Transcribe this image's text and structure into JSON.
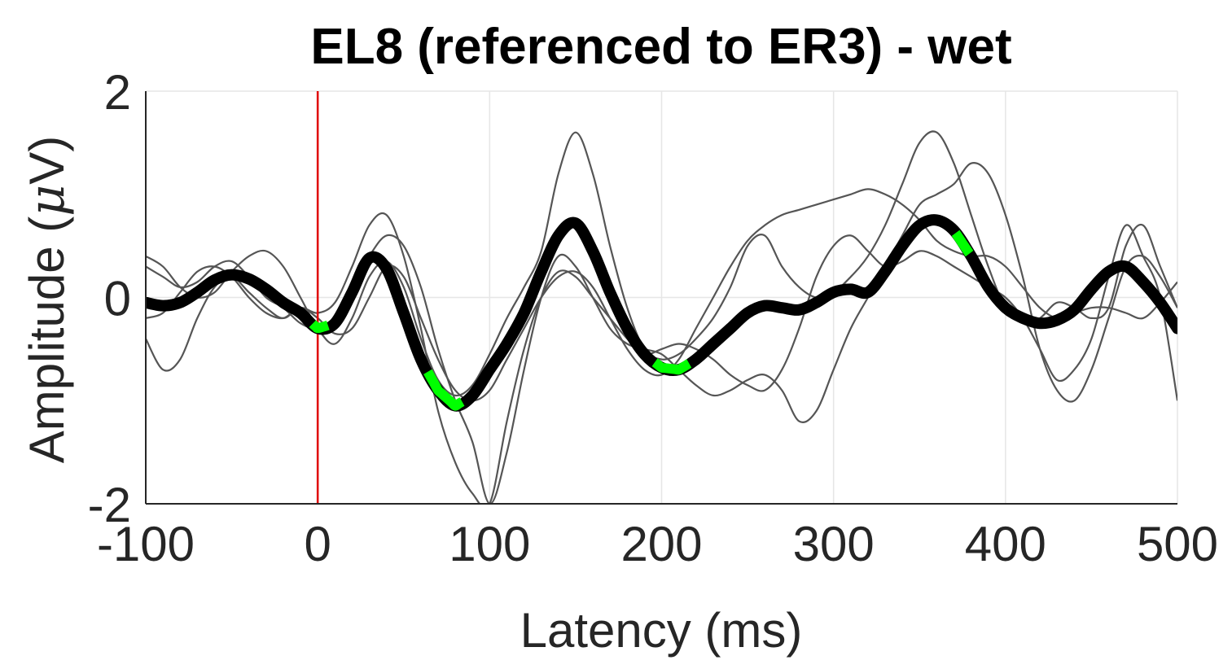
{
  "chart_data": {
    "type": "line",
    "title": "EL8 (referenced to ER3) - wet",
    "xlabel": "Latency (ms)",
    "ylabel_prefix": "Amplitude (",
    "ylabel_mu": "μ",
    "ylabel_suffix": "V)",
    "xlim": [
      -100,
      500
    ],
    "ylim": [
      -2,
      2
    ],
    "xticks": [
      -100,
      0,
      100,
      200,
      300,
      400,
      500
    ],
    "yticks": [
      -2,
      0,
      2
    ],
    "xtick_labels": [
      "-100",
      "0",
      "100",
      "200",
      "300",
      "400",
      "500"
    ],
    "ytick_labels": [
      "-2",
      "0",
      "2"
    ],
    "grid": true,
    "colors": {
      "mean": "#000000",
      "trials": "#555555",
      "highlight": "#00ff00",
      "stimulus": "#e00000",
      "grid": "#e6e6e6",
      "axis": "#262626"
    },
    "stimulus_line_x": 0,
    "mean_series": {
      "x": [
        -100,
        -90,
        -80,
        -70,
        -60,
        -50,
        -40,
        -30,
        -20,
        -10,
        0,
        10,
        20,
        30,
        40,
        50,
        60,
        70,
        80,
        90,
        100,
        110,
        120,
        130,
        140,
        150,
        160,
        170,
        180,
        190,
        200,
        210,
        220,
        230,
        240,
        250,
        260,
        270,
        280,
        290,
        300,
        310,
        320,
        330,
        340,
        350,
        360,
        370,
        380,
        390,
        400,
        410,
        420,
        430,
        440,
        450,
        460,
        470,
        480,
        490,
        500
      ],
      "y": [
        -0.05,
        -0.08,
        -0.05,
        0.05,
        0.17,
        0.22,
        0.18,
        0.08,
        -0.05,
        -0.15,
        -0.3,
        -0.25,
        0.05,
        0.38,
        0.28,
        -0.15,
        -0.6,
        -0.9,
        -1.05,
        -0.95,
        -0.7,
        -0.45,
        -0.15,
        0.25,
        0.6,
        0.72,
        0.45,
        0.05,
        -0.3,
        -0.55,
        -0.68,
        -0.7,
        -0.6,
        -0.45,
        -0.3,
        -0.15,
        -0.08,
        -0.1,
        -0.12,
        -0.05,
        0.05,
        0.08,
        0.05,
        0.25,
        0.5,
        0.7,
        0.75,
        0.65,
        0.4,
        0.1,
        -0.1,
        -0.2,
        -0.25,
        -0.22,
        -0.12,
        0.08,
        0.25,
        0.3,
        0.15,
        -0.05,
        -0.3
      ]
    },
    "highlight_ranges": [
      [
        -3,
        6
      ],
      [
        64,
        84
      ],
      [
        196,
        216
      ],
      [
        371,
        379
      ]
    ],
    "trial_series": [
      {
        "x": [
          -100,
          -90,
          -80,
          -70,
          -60,
          -50,
          -40,
          -30,
          -20,
          -10,
          0,
          10,
          20,
          30,
          40,
          50,
          60,
          70,
          80,
          90,
          100,
          110,
          120,
          130,
          140,
          150,
          160,
          170,
          180,
          190,
          200,
          210,
          220,
          230,
          240,
          250,
          260,
          270,
          280,
          290,
          300,
          310,
          320,
          330,
          340,
          350,
          360,
          370,
          380,
          390,
          400,
          410,
          420,
          430,
          440,
          450,
          460,
          470,
          480,
          490,
          500
        ],
        "y": [
          0.4,
          0.3,
          0.1,
          0.0,
          0.05,
          0.25,
          0.4,
          0.45,
          0.3,
          0.0,
          -0.3,
          -0.45,
          -0.2,
          0.2,
          0.35,
          0.1,
          -0.4,
          -0.8,
          -0.95,
          -0.85,
          -0.55,
          -0.2,
          0.1,
          0.45,
          1.2,
          1.6,
          1.2,
          0.5,
          -0.1,
          -0.5,
          -0.6,
          -0.55,
          -0.4,
          -0.2,
          0.1,
          0.5,
          0.6,
          0.3,
          0.1,
          0.0,
          0.05,
          0.2,
          0.4,
          0.7,
          1.1,
          1.5,
          1.6,
          1.3,
          0.8,
          0.3,
          -0.1,
          -0.25,
          -0.2,
          -0.05,
          -0.1,
          -0.2,
          -0.1,
          0.5,
          0.7,
          0.3,
          -0.1
        ]
      },
      {
        "x": [
          -100,
          -90,
          -80,
          -70,
          -60,
          -50,
          -40,
          -30,
          -20,
          -10,
          0,
          10,
          20,
          30,
          40,
          50,
          60,
          70,
          80,
          90,
          100,
          110,
          120,
          130,
          140,
          150,
          160,
          170,
          180,
          190,
          200,
          210,
          220,
          230,
          240,
          250,
          260,
          270,
          280,
          290,
          300,
          310,
          320,
          330,
          340,
          350,
          360,
          370,
          380,
          390,
          400,
          410,
          420,
          430,
          440,
          450,
          460,
          470,
          480,
          490,
          500
        ],
        "y": [
          -0.4,
          -0.7,
          -0.6,
          -0.2,
          0.1,
          0.2,
          0.05,
          -0.1,
          -0.2,
          -0.1,
          -0.15,
          -0.05,
          0.3,
          0.7,
          0.8,
          0.4,
          -0.3,
          -1.1,
          -1.6,
          -1.9,
          -2.0,
          -1.2,
          -0.5,
          0.0,
          0.25,
          0.2,
          0.0,
          -0.2,
          -0.4,
          -0.55,
          -0.5,
          -0.45,
          -0.5,
          -0.6,
          -0.75,
          -0.85,
          -0.9,
          -0.7,
          -0.3,
          0.2,
          0.5,
          0.6,
          0.45,
          0.3,
          0.35,
          0.45,
          0.4,
          0.3,
          0.2,
          0.1,
          0.0,
          -0.2,
          -0.5,
          -0.8,
          -0.7,
          -0.4,
          0.2,
          0.7,
          0.4,
          0.0,
          -1.0
        ]
      },
      {
        "x": [
          -100,
          -90,
          -80,
          -70,
          -60,
          -50,
          -40,
          -30,
          -20,
          -10,
          0,
          10,
          20,
          30,
          40,
          50,
          60,
          70,
          80,
          90,
          100,
          110,
          120,
          130,
          140,
          150,
          160,
          170,
          180,
          190,
          200,
          210,
          220,
          230,
          240,
          250,
          260,
          270,
          280,
          290,
          300,
          310,
          320,
          330,
          340,
          350,
          360,
          370,
          380,
          390,
          400,
          410,
          420,
          430,
          440,
          450,
          460,
          470,
          480,
          490,
          500
        ],
        "y": [
          0.3,
          0.2,
          0.1,
          0.15,
          0.3,
          0.35,
          0.2,
          0.0,
          -0.1,
          -0.25,
          -0.3,
          -0.2,
          0.1,
          0.4,
          0.6,
          0.5,
          0.1,
          -0.5,
          -1.0,
          -1.4,
          -2.0,
          -1.5,
          -0.7,
          0.0,
          0.4,
          0.3,
          0.0,
          -0.3,
          -0.45,
          -0.5,
          -0.55,
          -0.7,
          -0.85,
          -0.95,
          -0.9,
          -0.8,
          -0.75,
          -0.9,
          -1.2,
          -1.1,
          -0.7,
          -0.3,
          0.0,
          0.3,
          0.6,
          0.9,
          1.0,
          1.1,
          1.3,
          1.2,
          0.8,
          0.2,
          -0.5,
          -0.9,
          -1.0,
          -0.7,
          -0.2,
          0.3,
          0.4,
          0.2,
          -0.1
        ]
      },
      {
        "x": [
          -100,
          -90,
          -80,
          -70,
          -60,
          -50,
          -40,
          -30,
          -20,
          -10,
          0,
          10,
          20,
          30,
          40,
          50,
          60,
          70,
          80,
          90,
          100,
          110,
          120,
          130,
          140,
          150,
          160,
          170,
          180,
          190,
          200,
          210,
          220,
          230,
          240,
          250,
          260,
          270,
          280,
          290,
          300,
          310,
          320,
          330,
          340,
          350,
          360,
          370,
          380,
          390,
          400,
          410,
          420,
          430,
          440,
          450,
          460,
          470,
          480,
          490,
          500
        ],
        "y": [
          -0.2,
          -0.15,
          0.05,
          0.25,
          0.3,
          0.2,
          0.0,
          -0.15,
          -0.2,
          -0.1,
          -0.2,
          -0.35,
          -0.3,
          0.0,
          0.3,
          0.2,
          -0.2,
          -0.6,
          -0.9,
          -1.0,
          -0.9,
          -0.6,
          -0.3,
          0.0,
          0.2,
          0.25,
          0.1,
          -0.2,
          -0.5,
          -0.7,
          -0.75,
          -0.6,
          -0.3,
          0.0,
          0.3,
          0.55,
          0.7,
          0.8,
          0.85,
          0.9,
          0.95,
          1.0,
          1.05,
          1.0,
          0.9,
          0.75,
          0.55,
          0.45,
          0.4,
          0.4,
          0.3,
          0.1,
          -0.1,
          -0.2,
          -0.15,
          -0.1,
          -0.1,
          -0.15,
          -0.2,
          -0.05,
          0.15
        ]
      }
    ]
  }
}
